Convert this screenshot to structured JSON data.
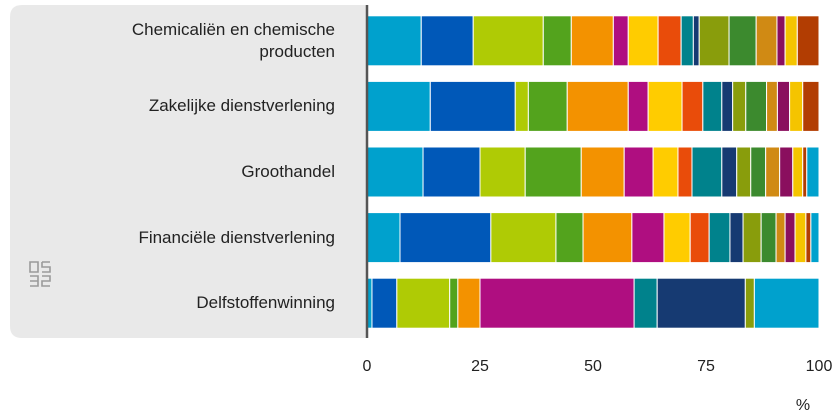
{
  "chart_data": {
    "type": "stacked-barh",
    "categories": [
      "Chemicaliën en chemische producten",
      "Zakelijke dienstverlening",
      "Groothandel",
      "Financiële dienstverlening",
      "Delfstoffenwinning"
    ],
    "series": [
      {
        "color": "#00a1cd",
        "values": [
          12,
          14,
          12.4,
          7.3,
          1.1
        ]
      },
      {
        "color": "#0058b8",
        "values": [
          11.5,
          18.8,
          12.6,
          20.1,
          5.5
        ]
      },
      {
        "color": "#afcb05",
        "values": [
          15.5,
          2.9,
          10,
          14.4,
          11.7
        ]
      },
      {
        "color": "#53a31d",
        "values": [
          6.2,
          8.6,
          12.4,
          6,
          1.8
        ]
      },
      {
        "color": "#f39200",
        "values": [
          9.3,
          13.5,
          9.5,
          10.8,
          4.9
        ]
      },
      {
        "color": "#af0e80",
        "values": [
          3.3,
          4.4,
          6.4,
          7.1,
          34.1
        ]
      },
      {
        "color": "#ffcc00",
        "values": [
          6.6,
          7.5,
          5.5,
          5.8,
          0
        ]
      },
      {
        "color": "#e94c0a",
        "values": [
          5.1,
          4.6,
          3.1,
          4.2,
          0
        ]
      },
      {
        "color": "#00828c",
        "values": [
          2.7,
          4.2,
          6.6,
          4.6,
          5.1
        ]
      },
      {
        "color": "#163a72",
        "values": [
          1.3,
          2.4,
          3.3,
          2.9,
          19.5
        ]
      },
      {
        "color": "#899d0c",
        "values": [
          6.6,
          2.9,
          3.1,
          4,
          2
        ]
      },
      {
        "color": "#3c8a2e",
        "values": [
          6,
          4.6,
          3.3,
          3.3,
          0
        ]
      },
      {
        "color": "#d08a14",
        "values": [
          4.6,
          2.4,
          3.1,
          2,
          0
        ]
      },
      {
        "color": "#8a0f5e",
        "values": [
          1.8,
          2.7,
          2.9,
          2.2,
          0
        ]
      },
      {
        "color": "#f5c400",
        "values": [
          2.7,
          2.9,
          2.2,
          2.4,
          0
        ]
      },
      {
        "color": "#b23d02",
        "values": [
          4.8,
          3.6,
          0.9,
          1.1,
          0
        ]
      },
      {
        "color": "#00a1cd",
        "values": [
          0,
          0,
          2.7,
          1.8,
          14.3
        ]
      }
    ],
    "xlim": [
      0,
      100
    ],
    "xticks": [
      0,
      25,
      50,
      75,
      100
    ],
    "xlabel": "%"
  }
}
